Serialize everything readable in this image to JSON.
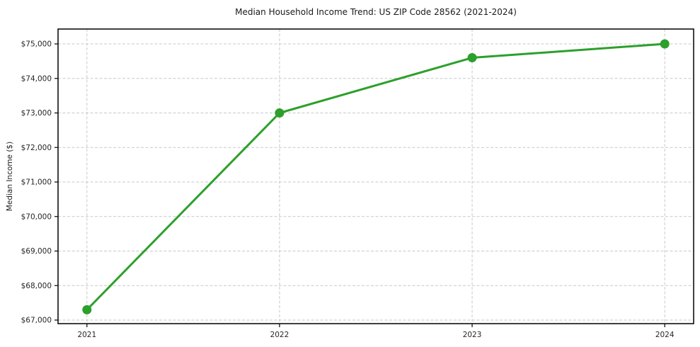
{
  "chart_data": {
    "type": "line",
    "title": "Median Household Income Trend: US ZIP Code 28562 (2021-2024)",
    "xlabel": "",
    "ylabel": "Median Income ($)",
    "x": [
      2021,
      2022,
      2023,
      2024
    ],
    "y": [
      67300,
      73000,
      74600,
      75000
    ],
    "x_tick_labels": [
      "2021",
      "2022",
      "2023",
      "2024"
    ],
    "y_ticks": [
      67000,
      68000,
      69000,
      70000,
      71000,
      72000,
      73000,
      74000,
      75000
    ],
    "y_tick_labels": [
      "$67,000",
      "$68,000",
      "$69,000",
      "$70,000",
      "$71,000",
      "$72,000",
      "$73,000",
      "$74,000",
      "$75,000"
    ],
    "xlim": [
      2020.85,
      2024.15
    ],
    "ylim": [
      66897,
      75431
    ],
    "grid": true,
    "legend": "none",
    "line_color": "#2ca02c",
    "marker_color": "#2ca02c",
    "grid_color": "#c9c9c9",
    "frame_color": "#000000"
  }
}
